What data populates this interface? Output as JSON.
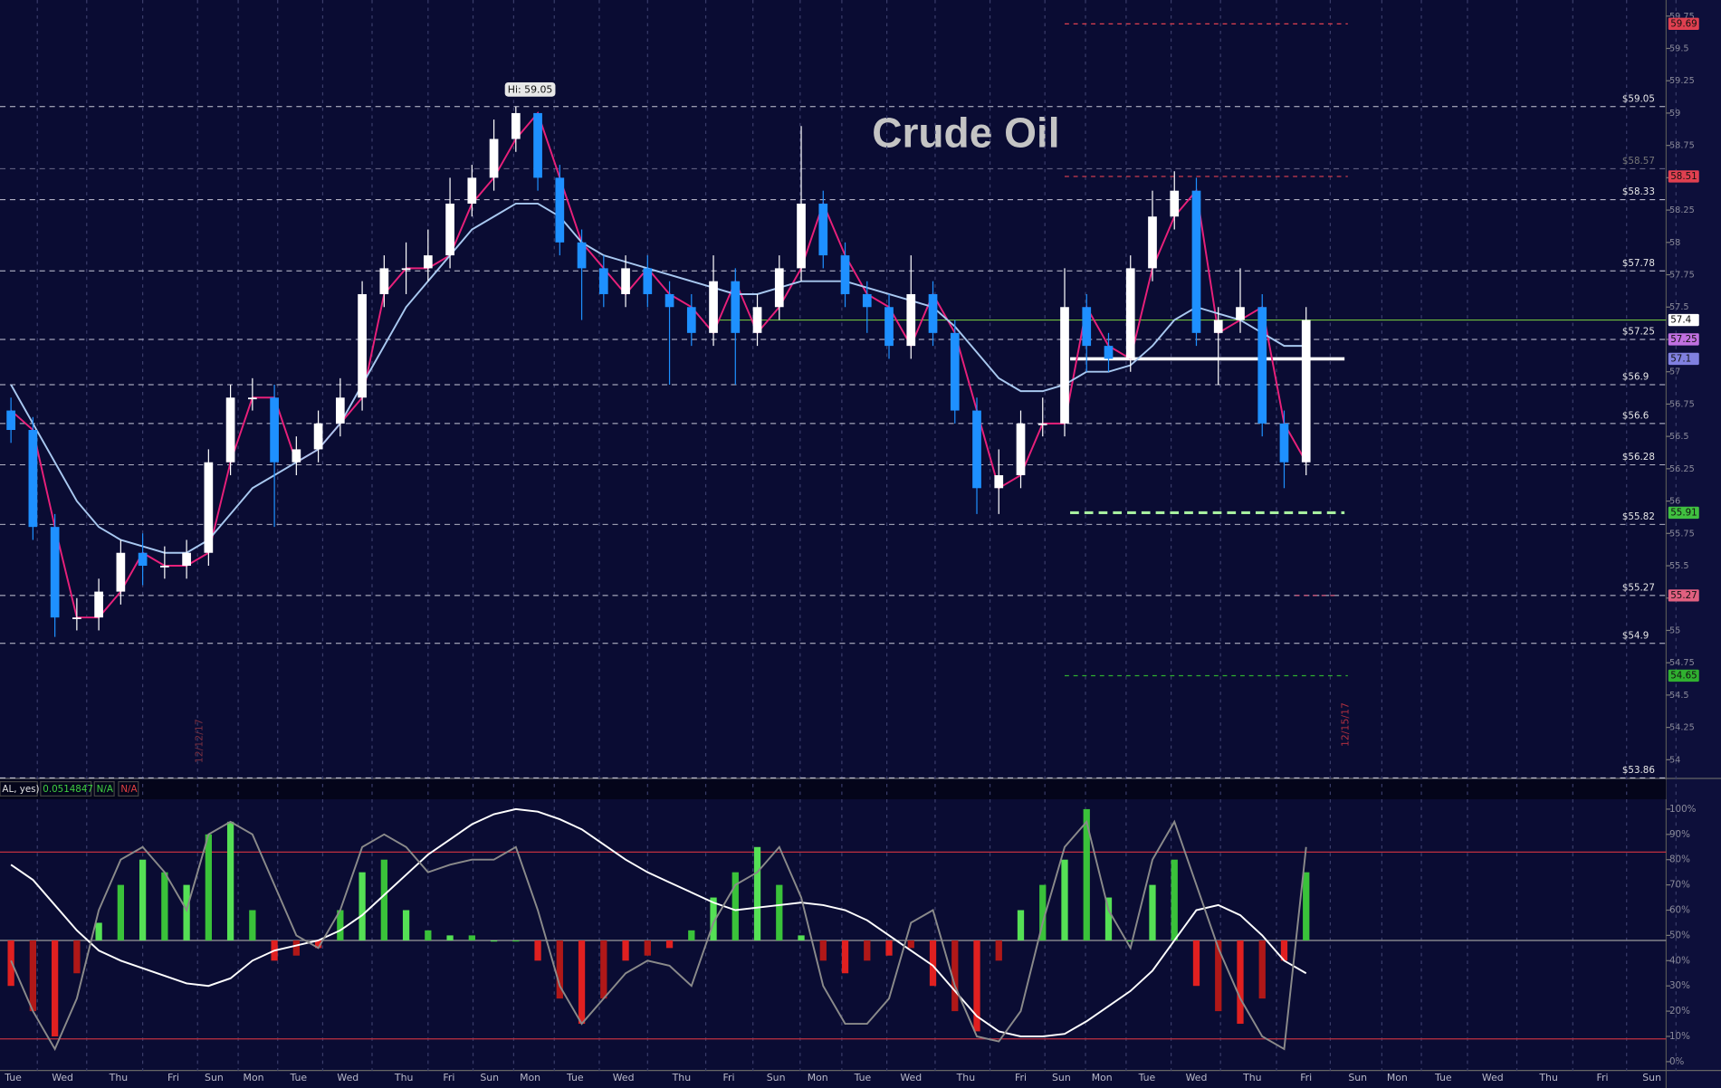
{
  "chart_data": [
    {
      "type": "candlestick",
      "title": "Crude Oil",
      "annotation": "Hi: 59.05",
      "open": [
        56.7,
        56.55,
        55.8,
        55.1,
        55.1,
        55.3,
        55.6,
        55.5,
        55.5,
        55.6,
        56.3,
        56.8,
        56.8,
        56.3,
        56.4,
        56.6,
        56.8,
        57.6,
        57.8,
        57.8,
        57.9,
        58.3,
        58.5,
        58.8,
        59.0,
        58.5,
        58.0,
        57.8,
        57.6,
        57.8,
        57.6,
        57.5,
        57.3,
        57.7,
        57.3,
        57.5,
        57.8,
        58.3,
        57.9,
        57.6,
        57.5,
        57.2,
        57.6,
        57.3,
        56.7,
        56.1,
        56.2,
        56.6,
        56.6,
        57.5,
        57.2,
        57.1,
        57.8,
        58.2,
        58.4,
        57.3,
        57.4,
        57.5,
        56.6,
        56.3
      ],
      "high": [
        56.8,
        56.65,
        55.9,
        55.25,
        55.4,
        55.7,
        55.75,
        55.65,
        55.7,
        56.4,
        56.9,
        56.95,
        56.9,
        56.5,
        56.7,
        56.95,
        57.7,
        57.9,
        58.0,
        58.1,
        58.5,
        58.6,
        58.95,
        59.05,
        59.0,
        58.6,
        58.1,
        57.9,
        57.9,
        57.9,
        57.7,
        57.6,
        57.9,
        57.8,
        57.6,
        57.9,
        58.9,
        58.4,
        58.0,
        57.7,
        57.6,
        57.9,
        57.7,
        57.4,
        56.8,
        56.4,
        56.7,
        56.8,
        57.8,
        57.6,
        57.3,
        57.9,
        58.4,
        58.55,
        58.5,
        57.5,
        57.8,
        57.6,
        56.7,
        57.5
      ],
      "low": [
        56.45,
        55.7,
        54.95,
        55.0,
        55.0,
        55.2,
        55.35,
        55.4,
        55.4,
        55.5,
        56.2,
        56.7,
        55.8,
        56.2,
        56.3,
        56.5,
        56.7,
        57.5,
        57.6,
        57.7,
        57.8,
        58.2,
        58.4,
        58.7,
        58.4,
        57.9,
        57.4,
        57.5,
        57.5,
        57.5,
        56.9,
        57.2,
        57.2,
        56.9,
        57.2,
        57.4,
        57.7,
        57.8,
        57.5,
        57.3,
        57.1,
        57.1,
        57.2,
        56.6,
        55.9,
        55.9,
        56.1,
        56.5,
        56.5,
        57.0,
        57.0,
        57.0,
        57.7,
        58.1,
        57.2,
        56.9,
        57.3,
        56.5,
        56.1,
        56.2
      ],
      "close": [
        56.55,
        55.8,
        55.1,
        55.1,
        55.3,
        55.6,
        55.5,
        55.5,
        55.6,
        56.3,
        56.8,
        56.8,
        56.3,
        56.4,
        56.6,
        56.8,
        57.6,
        57.8,
        57.8,
        57.9,
        58.3,
        58.5,
        58.8,
        59.0,
        58.5,
        58.0,
        57.8,
        57.6,
        57.8,
        57.6,
        57.5,
        57.3,
        57.7,
        57.3,
        57.5,
        57.8,
        58.3,
        57.9,
        57.6,
        57.5,
        57.2,
        57.6,
        57.3,
        56.7,
        56.1,
        56.2,
        56.6,
        56.6,
        57.5,
        57.2,
        57.1,
        57.8,
        58.2,
        58.4,
        57.3,
        57.4,
        57.5,
        56.6,
        56.3,
        57.4
      ],
      "ma": [
        {
          "color": "#e8207a",
          "values": [
            56.7,
            56.55,
            55.8,
            55.1,
            55.1,
            55.3,
            55.6,
            55.5,
            55.5,
            55.6,
            56.3,
            56.8,
            56.8,
            56.3,
            56.4,
            56.6,
            56.8,
            57.6,
            57.8,
            57.8,
            57.9,
            58.3,
            58.5,
            58.8,
            59.0,
            58.5,
            58.0,
            57.8,
            57.6,
            57.8,
            57.6,
            57.5,
            57.3,
            57.7,
            57.3,
            57.5,
            57.8,
            58.3,
            57.9,
            57.6,
            57.5,
            57.2,
            57.6,
            57.3,
            56.7,
            56.1,
            56.2,
            56.6,
            56.6,
            57.5,
            57.2,
            57.1,
            57.8,
            58.2,
            58.4,
            57.3,
            57.4,
            57.5,
            56.6,
            56.3
          ]
        },
        {
          "color": "#a8c8f0",
          "values": [
            56.9,
            56.6,
            56.3,
            56.0,
            55.8,
            55.7,
            55.65,
            55.6,
            55.6,
            55.7,
            55.9,
            56.1,
            56.2,
            56.3,
            56.4,
            56.6,
            56.9,
            57.2,
            57.5,
            57.7,
            57.9,
            58.1,
            58.2,
            58.3,
            58.3,
            58.2,
            58.0,
            57.9,
            57.85,
            57.8,
            57.75,
            57.7,
            57.65,
            57.6,
            57.6,
            57.65,
            57.7,
            57.7,
            57.7,
            57.65,
            57.6,
            57.55,
            57.5,
            57.35,
            57.15,
            56.95,
            56.85,
            56.85,
            56.9,
            57.0,
            57.0,
            57.05,
            57.2,
            57.4,
            57.5,
            57.45,
            57.4,
            57.3,
            57.2,
            57.2
          ]
        }
      ],
      "ylim": [
        53.86,
        59.75
      ],
      "yticks": [
        54,
        54.25,
        54.5,
        54.75,
        55,
        55.25,
        55.5,
        55.75,
        56,
        56.25,
        56.5,
        56.75,
        57,
        57.25,
        57.5,
        57.75,
        58,
        58.25,
        58.5,
        58.75,
        59,
        59.25,
        59.5,
        59.75
      ],
      "levels": [
        {
          "value": 59.05,
          "label": "$59.05"
        },
        {
          "value": 58.57,
          "label": "$58.57"
        },
        {
          "value": 58.33,
          "label": "$58.33"
        },
        {
          "value": 57.78,
          "label": "$57.78"
        },
        {
          "value": 57.25,
          "label": "$57.25"
        },
        {
          "value": 56.9,
          "label": "$56.9"
        },
        {
          "value": 56.6,
          "label": "$56.6"
        },
        {
          "value": 56.28,
          "label": "$56.28"
        },
        {
          "value": 55.82,
          "label": "$55.82"
        },
        {
          "value": 55.27,
          "label": "$55.27"
        },
        {
          "value": 54.9,
          "label": "$54.9"
        },
        {
          "value": 53.86,
          "label": "$53.86"
        }
      ],
      "tags": [
        {
          "value": 59.69,
          "color": "#e04050"
        },
        {
          "value": 58.51,
          "color": "#e04050"
        },
        {
          "value": 57.4,
          "color": "#ffffff"
        },
        {
          "value": 57.25,
          "color": "#c070e0"
        },
        {
          "value": 57.1,
          "color": "#8080e0"
        },
        {
          "value": 55.91,
          "color": "#40c040"
        },
        {
          "value": 55.27,
          "color": "#e06080"
        },
        {
          "value": 54.65,
          "color": "#30b030"
        }
      ],
      "dates": [
        "12/12/17",
        "12/15/17"
      ]
    },
    {
      "type": "oscillator",
      "legend": [
        "AL, yes)",
        "0.0514847",
        "N/A",
        "N/A"
      ],
      "x_labels": [
        "Tue",
        "Wed",
        "Thu",
        "Fri",
        "Sun",
        "Mon",
        "Tue",
        "Wed",
        "Thu",
        "Fri",
        "Sun",
        "Mon",
        "Tue",
        "Wed",
        "Thu",
        "Fri",
        "Sun",
        "Mon",
        "Tue",
        "Wed",
        "Thu",
        "Fri",
        "Sun",
        "Mon",
        "Tue",
        "Wed",
        "Thu",
        "Fri",
        "Sun",
        "Mon",
        "Tue",
        "Wed",
        "Thu",
        "Fri",
        "Sun"
      ],
      "ylim": [
        0,
        100
      ],
      "yticks": [
        {
          "value": 0,
          "label": "0%"
        },
        {
          "value": 10,
          "label": "10%"
        },
        {
          "value": 20,
          "label": "20%"
        },
        {
          "value": 30,
          "label": "30%"
        },
        {
          "value": 40,
          "label": "40%"
        },
        {
          "value": 50,
          "label": "50%"
        },
        {
          "value": 60,
          "label": "60%"
        },
        {
          "value": 70,
          "label": "70%"
        },
        {
          "value": 80,
          "label": "80%"
        },
        {
          "value": 90,
          "label": "90%"
        },
        {
          "value": 100,
          "label": "100%"
        }
      ],
      "reference_lines": [
        {
          "value": 48,
          "color": "#9a9a9a"
        },
        {
          "value": 83,
          "color": "#c03040"
        },
        {
          "value": 9,
          "color": "#c03040"
        }
      ],
      "values": [
        30,
        20,
        10,
        35,
        55,
        70,
        80,
        75,
        70,
        90,
        95,
        60,
        40,
        42,
        45,
        60,
        75,
        80,
        60,
        52,
        50,
        50,
        48,
        48,
        40,
        25,
        15,
        25,
        40,
        42,
        45,
        52,
        65,
        75,
        85,
        70,
        50,
        40,
        35,
        40,
        42,
        45,
        30,
        20,
        12,
        40,
        60,
        70,
        80,
        100,
        65,
        48,
        70,
        80,
        30,
        20,
        15,
        25,
        40,
        75
      ],
      "series": [
        {
          "color": "#ffffff",
          "values": [
            78,
            72,
            62,
            52,
            44,
            40,
            37,
            34,
            31,
            30,
            33,
            40,
            44,
            46,
            48,
            52,
            58,
            66,
            74,
            82,
            88,
            94,
            98,
            100,
            99,
            96,
            92,
            86,
            80,
            75,
            71,
            67,
            63,
            60,
            61,
            62,
            63,
            62,
            60,
            56,
            50,
            44,
            38,
            28,
            18,
            12,
            10,
            10,
            11,
            16,
            22,
            28,
            36,
            48,
            60,
            62,
            58,
            50,
            40,
            35
          ]
        },
        {
          "color": "#8a8a8a",
          "values": [
            40,
            20,
            5,
            25,
            60,
            80,
            85,
            75,
            60,
            90,
            95,
            90,
            70,
            50,
            45,
            60,
            85,
            90,
            85,
            75,
            78,
            80,
            80,
            85,
            60,
            30,
            15,
            25,
            35,
            40,
            38,
            30,
            55,
            70,
            75,
            85,
            65,
            30,
            15,
            15,
            25,
            55,
            60,
            30,
            10,
            8,
            20,
            55,
            85,
            95,
            60,
            45,
            80,
            95,
            70,
            45,
            25,
            10,
            5,
            85
          ]
        }
      ]
    }
  ]
}
